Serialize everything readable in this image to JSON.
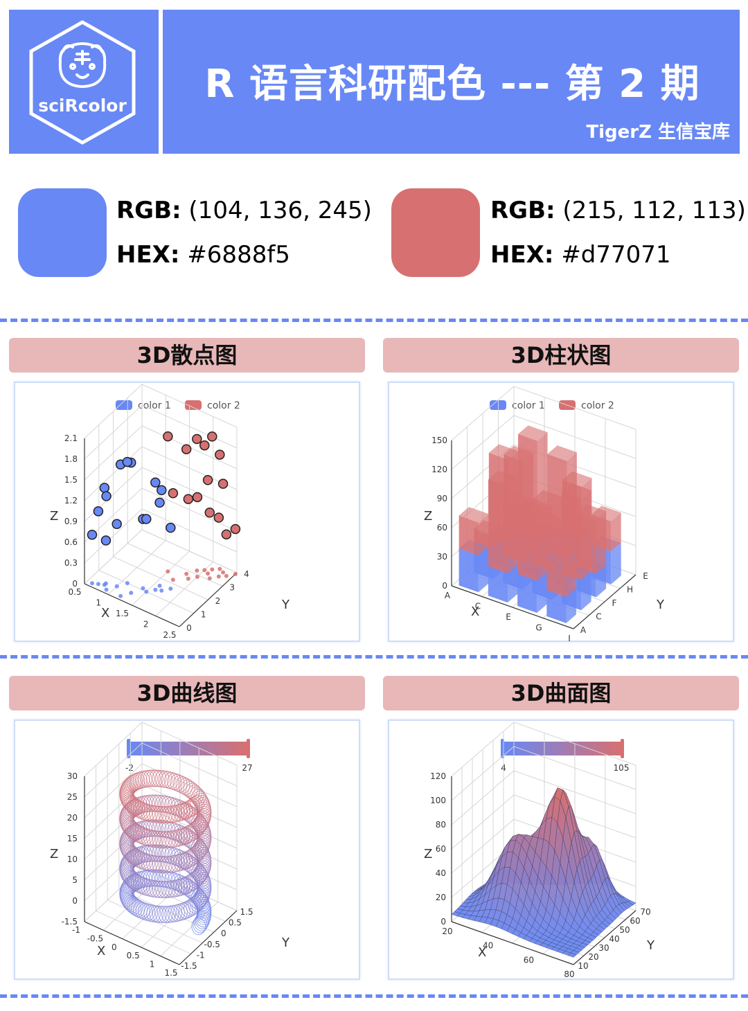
{
  "header": {
    "logo_text": "sciRcolor",
    "title": "R 语言科研配色 --- 第 2 期",
    "subtitle": "TigerZ 生信宝库",
    "background": "#6888f5"
  },
  "swatches": [
    {
      "rgb_label": "RGB:",
      "rgb_value": "(104, 136, 245)",
      "hex_label": "HEX:",
      "hex_value": "#6888f5",
      "color": "#6888f5"
    },
    {
      "rgb_label": "RGB:",
      "rgb_value": "(215, 112, 113)",
      "hex_label": "HEX:",
      "hex_value": "#d77071",
      "color": "#d77071"
    }
  ],
  "panels": {
    "scatter_title": "3D散点图",
    "bar_title": "3D柱状图",
    "line_title": "3D曲线图",
    "surface_title": "3D曲面图"
  },
  "chart_data": [
    {
      "type": "scatter",
      "legend": [
        "color 1",
        "color 2"
      ],
      "colors": [
        "#6888f5",
        "#d77071"
      ],
      "xlabel": "X",
      "ylabel": "Y",
      "zlabel": "Z",
      "x_ticks": [
        "0.5",
        "1",
        "1.5",
        "2",
        "2.5"
      ],
      "y_ticks": [
        "0",
        "1",
        "2",
        "3",
        "4"
      ],
      "z_ticks": [
        "0",
        "0.3",
        "0.6",
        "0.9",
        "1.2",
        "1.5",
        "1.8",
        "2.1"
      ],
      "xlim": [
        0.5,
        2.5
      ],
      "ylim": [
        0,
        4
      ],
      "zlim": [
        0,
        2.1
      ],
      "series": [
        {
          "name": "color 1",
          "points": [
            [
              1.2,
              0.2,
              1.9
            ],
            [
              1.3,
              0.6,
              1.88
            ],
            [
              1.1,
              1.0,
              1.75
            ],
            [
              0.8,
              0.4,
              1.4
            ],
            [
              0.9,
              0.2,
              1.35
            ],
            [
              0.7,
              0.3,
              1.05
            ],
            [
              1.0,
              0.6,
              0.9
            ],
            [
              1.4,
              1.1,
              1.0
            ],
            [
              1.5,
              1.0,
              1.05
            ],
            [
              1.6,
              1.3,
              1.55
            ],
            [
              1.7,
              1.4,
              1.45
            ],
            [
              1.6,
              1.6,
              1.2
            ],
            [
              0.6,
              0.2,
              0.7
            ],
            [
              0.8,
              0.5,
              0.62
            ],
            [
              1.8,
              1.7,
              0.88
            ]
          ]
        },
        {
          "name": "color 2",
          "points": [
            [
              1.5,
              2.5,
              1.95
            ],
            [
              1.8,
              2.8,
              1.8
            ],
            [
              1.9,
              3.2,
              1.9
            ],
            [
              2.1,
              3.6,
              1.92
            ],
            [
              2.0,
              3.4,
              1.8
            ],
            [
              2.2,
              3.8,
              1.65
            ],
            [
              2.1,
              3.3,
              1.35
            ],
            [
              2.3,
              3.7,
              1.28
            ],
            [
              1.7,
              2.2,
              1.25
            ],
            [
              1.9,
              2.6,
              1.15
            ],
            [
              2.0,
              2.9,
              1.15
            ],
            [
              2.2,
              3.1,
              0.95
            ],
            [
              2.3,
              3.4,
              0.85
            ],
            [
              2.4,
              3.6,
              0.6
            ],
            [
              2.5,
              3.9,
              0.65
            ]
          ]
        }
      ]
    },
    {
      "type": "bar",
      "legend": [
        "color 1",
        "color 2"
      ],
      "colors": [
        "#6888f5",
        "#d77071"
      ],
      "xlabel": "X",
      "ylabel": "Y",
      "zlabel": "Z",
      "x_ticks": [
        "A",
        "C",
        "E",
        "G",
        "I"
      ],
      "y_ticks": [
        "A",
        "C",
        "F",
        "H",
        "E"
      ],
      "z_ticks": [
        "0",
        "30",
        "60",
        "90",
        "120",
        "150"
      ],
      "zlim": [
        0,
        150
      ],
      "series": [
        {
          "name": "color 1",
          "values": [
            38,
            32,
            25,
            35,
            30,
            28,
            36,
            26,
            33,
            30,
            29,
            35,
            27,
            31,
            24,
            34
          ]
        },
        {
          "name": "color 2",
          "values": [
            72,
            45,
            110,
            95,
            120,
            85,
            140,
            60,
            100,
            75,
            130,
            90,
            55,
            115,
            80,
            65
          ]
        }
      ]
    },
    {
      "type": "line",
      "colorbar": {
        "min_label": "-2",
        "max_label": "27",
        "min": -2,
        "max": 27,
        "colors": [
          "#6888f5",
          "#d77071"
        ]
      },
      "xlabel": "X",
      "ylabel": "Y",
      "zlabel": "Z",
      "x_ticks": [
        "-1",
        "-0.5",
        "0",
        "0.5",
        "1",
        "1.5"
      ],
      "y_ticks": [
        "-1.5",
        "-1",
        "-0.5",
        "0",
        "0.5",
        "1.5"
      ],
      "z_ticks": [
        "-1.5",
        "0",
        "5",
        "10",
        "15",
        "20",
        "25",
        "30"
      ],
      "zlim": [
        -1.5,
        30
      ],
      "helix": {
        "turns": 5,
        "z_start": 0,
        "z_end": 27,
        "radius": 1
      }
    },
    {
      "type": "area",
      "subtype": "surface",
      "colorbar": {
        "min_label": "4",
        "max_label": "105",
        "min": 4,
        "max": 105,
        "colors": [
          "#6888f5",
          "#d77071"
        ]
      },
      "xlabel": "X",
      "ylabel": "Y",
      "zlabel": "Z",
      "x_ticks": [
        "20",
        "40",
        "60",
        "80"
      ],
      "y_ticks": [
        "10",
        "20",
        "30",
        "40",
        "50",
        "60",
        "70"
      ],
      "z_ticks": [
        "0",
        "20",
        "40",
        "60",
        "80",
        "100",
        "120"
      ],
      "zlim": [
        0,
        120
      ]
    }
  ]
}
